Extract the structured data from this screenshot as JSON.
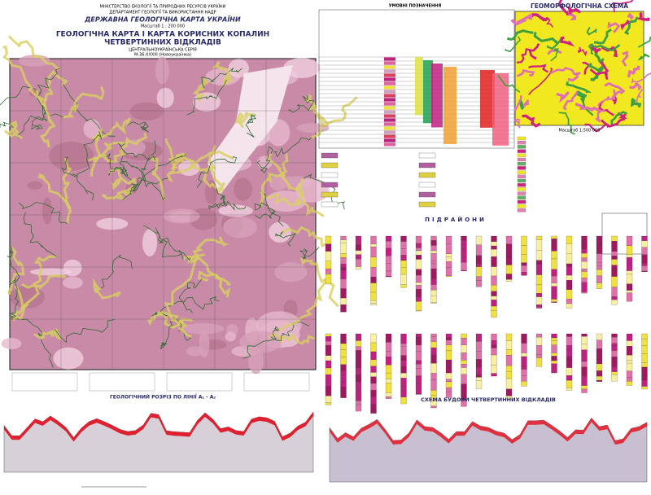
{
  "header": {
    "ministry": "МІНІСТЕРСТВО ЕКОЛОГІЇ ТА ПРИРОДНИХ РЕСУРСІВ УКРАЇНИ",
    "department": "ДЕПАРТАМЕНТ ГЕОЛОГІЇ ТА ВИКОРИСТАННЯ НАДР",
    "series_title": "ДЕРЖАВНА ГЕОЛОГІЧНА КАРТА УКРАЇНИ",
    "scale": "Масштаб 1 : 200 000",
    "title": "ГЕОЛОГІЧНА КАРТА І КАРТА КОРИСНИХ КОПАЛИН",
    "subtitle": "ЧЕТВЕРТИННИХ ВІДКЛАДІВ",
    "series": "ЦЕНТРАЛЬНОУКРАЇНСЬКА СЕРІЯ",
    "sheet": "M-36-XXXIII (Новоукраїнка)"
  },
  "legend": {
    "title": "УМОВНІ ПОЗНАЧЕННЯ"
  },
  "geomorphology": {
    "title": "ГЕОМОРФОЛОГІЧНА СХЕМА",
    "scale": "Масштаб 1:500 000"
  },
  "columns": {
    "title": "ПІДРАЙОНИ"
  },
  "sections": {
    "geologic": "ГЕОЛОГІЧНИЙ РОЗРІЗ ПО ЛІНІЇ А₁ - А₂",
    "quaternary": "СХЕМА БУДОВИ ЧЕТВЕРТИННИХ ВІДКЛАДІВ"
  }
}
